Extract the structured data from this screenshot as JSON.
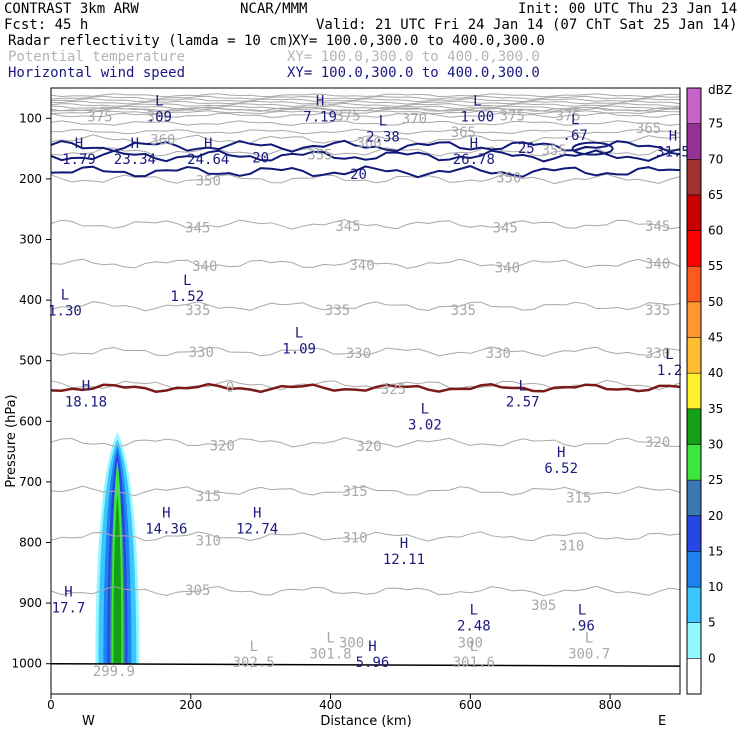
{
  "header": {
    "model": "CONTRAST  3km ARW",
    "org": "NCAR/MMM",
    "init": "Init: 00 UTC Thu 23 Jan 14",
    "fcst": "Fcst:   45 h",
    "valid": "Valid: 21 UTC Fri 24 Jan 14 (07 ChT Sat 25 Jan 14)",
    "fields": [
      {
        "name": "Radar reflectivity (lamda = 10 cm)",
        "xy": "XY= 100.0,300.0 to 400.0,300.0",
        "style": "black"
      },
      {
        "name": "Potential temperature",
        "xy": "XY= 100.0,300.0 to 400.0,300.0",
        "style": "gray"
      },
      {
        "name": "Horizontal wind speed",
        "xy": "XY= 100.0,300.0 to 400.0,300.0",
        "style": "blue"
      }
    ]
  },
  "chart_data": {
    "type": "cross-section",
    "xlabel": "Distance (km)",
    "ylabel": "Pressure (hPa)",
    "xlim": [
      0,
      900
    ],
    "ylim": [
      1050,
      50
    ],
    "x_ticks": [
      0,
      200,
      400,
      600,
      800
    ],
    "y_ticks": [
      100,
      200,
      300,
      400,
      500,
      600,
      700,
      800,
      900,
      1000
    ],
    "x_end_labels": {
      "left": "W",
      "right": "E"
    },
    "theta_contours": [
      {
        "level": 305,
        "p": 880
      },
      {
        "level": 310,
        "p": 790
      },
      {
        "level": 315,
        "p": 715
      },
      {
        "level": 320,
        "p": 635
      },
      {
        "level": 325,
        "p": 540
      },
      {
        "level": 330,
        "p": 485
      },
      {
        "level": 335,
        "p": 410
      },
      {
        "level": 340,
        "p": 340
      },
      {
        "level": 345,
        "p": 275
      },
      {
        "level": 350,
        "p": 200
      },
      {
        "level": 355,
        "p": 155
      },
      {
        "level": 360,
        "p": 135
      },
      {
        "level": 365,
        "p": 122
      },
      {
        "level": 370,
        "p": 108
      },
      {
        "level": 375,
        "p": 95
      },
      {
        "level": 380,
        "p": 85
      }
    ],
    "theta_labels": [
      {
        "text": "375",
        "x": 70,
        "p": 97
      },
      {
        "text": "380",
        "x": 155,
        "p": 97
      },
      {
        "text": "375",
        "x": 425,
        "p": 95
      },
      {
        "text": "370",
        "x": 520,
        "p": 100
      },
      {
        "text": "375",
        "x": 660,
        "p": 95
      },
      {
        "text": "375",
        "x": 740,
        "p": 95
      },
      {
        "text": "365",
        "x": 590,
        "p": 123
      },
      {
        "text": "365",
        "x": 855,
        "p": 116
      },
      {
        "text": "360",
        "x": 160,
        "p": 135
      },
      {
        "text": "360",
        "x": 455,
        "p": 140
      },
      {
        "text": "355",
        "x": 385,
        "p": 160
      },
      {
        "text": "355",
        "x": 720,
        "p": 152
      },
      {
        "text": "350",
        "x": 225,
        "p": 203
      },
      {
        "text": "350",
        "x": 655,
        "p": 198
      },
      {
        "text": "345",
        "x": 210,
        "p": 280
      },
      {
        "text": "345",
        "x": 425,
        "p": 278
      },
      {
        "text": "345",
        "x": 650,
        "p": 280
      },
      {
        "text": "345",
        "x": 868,
        "p": 278
      },
      {
        "text": "340",
        "x": 220,
        "p": 344
      },
      {
        "text": "340",
        "x": 445,
        "p": 342
      },
      {
        "text": "340",
        "x": 653,
        "p": 346
      },
      {
        "text": "340",
        "x": 868,
        "p": 340
      },
      {
        "text": "335",
        "x": 210,
        "p": 416
      },
      {
        "text": "335",
        "x": 410,
        "p": 416
      },
      {
        "text": "335",
        "x": 590,
        "p": 416
      },
      {
        "text": "335",
        "x": 868,
        "p": 416
      },
      {
        "text": "330",
        "x": 215,
        "p": 486
      },
      {
        "text": "330",
        "x": 440,
        "p": 487
      },
      {
        "text": "330",
        "x": 640,
        "p": 487
      },
      {
        "text": "330",
        "x": 868,
        "p": 487
      },
      {
        "text": "325",
        "x": 490,
        "p": 547
      },
      {
        "text": "320",
        "x": 245,
        "p": 640
      },
      {
        "text": "320",
        "x": 455,
        "p": 641
      },
      {
        "text": "320",
        "x": 868,
        "p": 634
      },
      {
        "text": "315",
        "x": 225,
        "p": 723
      },
      {
        "text": "315",
        "x": 435,
        "p": 715
      },
      {
        "text": "315",
        "x": 755,
        "p": 726
      },
      {
        "text": "310",
        "x": 225,
        "p": 797
      },
      {
        "text": "310",
        "x": 435,
        "p": 792
      },
      {
        "text": "310",
        "x": 745,
        "p": 805
      },
      {
        "text": "305",
        "x": 210,
        "p": 878
      },
      {
        "text": "305",
        "x": 705,
        "p": 903
      },
      {
        "text": "300",
        "x": 430,
        "p": 965
      },
      {
        "text": "300",
        "x": 600,
        "p": 965
      }
    ],
    "freezing_level": {
      "label": "0",
      "p": 545
    },
    "wind_isotachs": [
      {
        "level": 20,
        "p": 162
      },
      {
        "level": 20,
        "p": 188
      },
      {
        "level": 25,
        "p": 146
      }
    ],
    "wind_labels": [
      {
        "text": "20",
        "x": 300,
        "p": 165
      },
      {
        "text": "20",
        "x": 440,
        "p": 192
      },
      {
        "text": "25",
        "x": 680,
        "p": 149
      }
    ],
    "extrema": [
      {
        "type": "L",
        "value": ".09",
        "x": 155,
        "p": 92
      },
      {
        "type": "H",
        "value": "7.19",
        "x": 385,
        "p": 92
      },
      {
        "type": "L",
        "value": "1.00",
        "x": 610,
        "p": 92
      },
      {
        "type": "L",
        "value": "2.38",
        "x": 475,
        "p": 125
      },
      {
        "type": "L",
        "value": ".67",
        "x": 750,
        "p": 123
      },
      {
        "type": "H",
        "value": "1.79",
        "x": 40,
        "p": 162
      },
      {
        "type": "H",
        "value": "23.34",
        "x": 120,
        "p": 162
      },
      {
        "type": "H",
        "value": "24.64",
        "x": 225,
        "p": 162
      },
      {
        "type": "H",
        "value": "26.78",
        "x": 605,
        "p": 162
      },
      {
        "type": "H",
        "value": "31.5",
        "x": 890,
        "p": 150
      },
      {
        "type": "L",
        "value": "1.30",
        "x": 20,
        "p": 412
      },
      {
        "type": "L",
        "value": "1.52",
        "x": 195,
        "p": 388
      },
      {
        "type": "L",
        "value": "1.09",
        "x": 355,
        "p": 475
      },
      {
        "type": "L",
        "value": "1.2",
        "x": 885,
        "p": 510
      },
      {
        "type": "H",
        "value": "18.18",
        "x": 50,
        "p": 562
      },
      {
        "type": "L",
        "value": "2.57",
        "x": 675,
        "p": 562
      },
      {
        "type": "L",
        "value": "3.02",
        "x": 535,
        "p": 600
      },
      {
        "type": "H",
        "value": "6.52",
        "x": 730,
        "p": 672
      },
      {
        "type": "H",
        "value": "14.36",
        "x": 165,
        "p": 772
      },
      {
        "type": "H",
        "value": "12.74",
        "x": 295,
        "p": 772
      },
      {
        "type": "H",
        "value": "12.11",
        "x": 505,
        "p": 822
      },
      {
        "type": "H",
        "value": "17.7",
        "x": 25,
        "p": 902
      },
      {
        "type": "L",
        "value": "2.48",
        "x": 605,
        "p": 932
      },
      {
        "type": "L",
        "value": ".96",
        "x": 760,
        "p": 932
      },
      {
        "type": "L",
        "value": "302.5",
        "x": 290,
        "p": 992
      },
      {
        "type": "L",
        "value": "301.8",
        "x": 400,
        "p": 978
      },
      {
        "type": "H",
        "value": "5.96",
        "x": 460,
        "p": 992
      },
      {
        "type": "L",
        "value": "301.6",
        "x": 605,
        "p": 992
      },
      {
        "type": "L",
        "value": "300.7",
        "x": 770,
        "p": 978
      },
      {
        "type": "",
        "value": "299.9",
        "x": 90,
        "p": 1007
      }
    ],
    "reflectivity": {
      "x_center": 95,
      "base_p": 1000,
      "layers": [
        {
          "dbz": 5,
          "half_width": 22,
          "top_p": 618
        },
        {
          "dbz": 10,
          "half_width": 19,
          "top_p": 630
        },
        {
          "dbz": 15,
          "half_width": 14,
          "top_p": 640
        },
        {
          "dbz": 20,
          "half_width": 10,
          "top_p": 650
        },
        {
          "dbz": 25,
          "half_width": 8,
          "top_p": 700
        },
        {
          "dbz": 30,
          "half_width": 6,
          "top_p": 665
        },
        {
          "dbz": 35,
          "half_width": 4,
          "top_p": 720
        }
      ]
    },
    "colorbar": {
      "unit": "dBZ",
      "levels": [
        0,
        5,
        10,
        15,
        20,
        25,
        30,
        35,
        40,
        45,
        50,
        55,
        60,
        65,
        70,
        75
      ],
      "colors": [
        "#ffffff",
        "#93f8ff",
        "#3cc6ff",
        "#1e82f0",
        "#2746e6",
        "#3c78b4",
        "#3ce63c",
        "#14a014",
        "#fff02d",
        "#ffbe32",
        "#ff9632",
        "#ff5a1e",
        "#ff0000",
        "#c80000",
        "#9e3232",
        "#963296",
        "#c864c8"
      ]
    }
  },
  "colors": {
    "theta": "#a8a8a8",
    "wind": "#101a78",
    "freezing": "#7a1a1a",
    "ground": "#000000"
  }
}
